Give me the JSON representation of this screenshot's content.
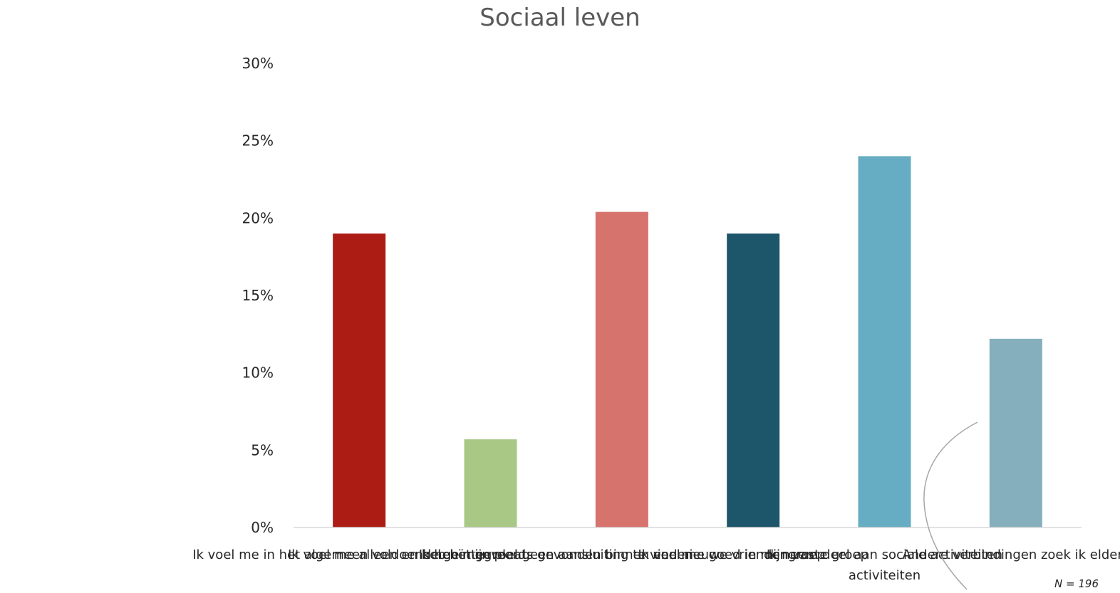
{
  "chart_data": {
    "type": "bar",
    "title": "Sociaal leven",
    "xlabel": "",
    "ylabel": "",
    "ylim": [
      0,
      30
    ],
    "y_ticks": [
      "0%",
      "5%",
      "10%",
      "15%",
      "20%",
      "25%",
      "30%"
    ],
    "grid": false,
    "categories": [
      "Ik voel me in het algemeen voldoende geïntegreerd",
      "Ik voel me alleen en heb het gevoel geen aansluiting te vinden",
      "Ik heb mijn plaats gevonden binnen een nieuwe vriendengroep",
      "Ik voel me goed in mijn vaste groep",
      "Ik neem deel aan sociale activiteiten",
      "Andere verbindingen zoek ik elders"
    ],
    "categories_second_line": [
      "",
      "",
      "",
      "",
      "activiteiten",
      ""
    ],
    "values": [
      19.0,
      5.7,
      20.4,
      19.0,
      24.0,
      12.2
    ],
    "colors": [
      "#ad1c14",
      "#a9c886",
      "#d6736d",
      "#1d566b",
      "#66acc2",
      "#85afbd"
    ],
    "footnote": "N = 196"
  }
}
